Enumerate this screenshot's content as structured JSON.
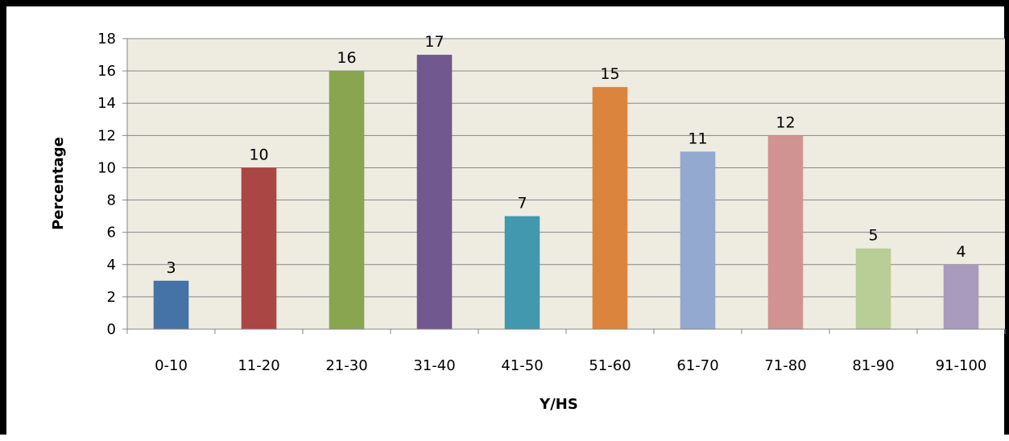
{
  "chart_data": {
    "type": "bar",
    "title": "",
    "xlabel": "Y/HS",
    "ylabel": "Percentage",
    "ylim": [
      0,
      18
    ],
    "yticks": [
      "0",
      "2",
      "4",
      "6",
      "8",
      "10",
      "12",
      "14",
      "16",
      "18"
    ],
    "grid": true,
    "legend": "none",
    "categories": [
      "0-10",
      "11-20",
      "21-30",
      "31-40",
      "41-50",
      "51-60",
      "61-70",
      "71-80",
      "81-90",
      "91-100"
    ],
    "values": [
      3,
      10,
      16,
      17,
      7,
      15,
      11,
      12,
      5,
      4
    ],
    "data_labels": [
      "3",
      "10",
      "16",
      "17",
      "7",
      "15",
      "11",
      "12",
      "5",
      "4"
    ],
    "colors": [
      "#4572a7",
      "#aa4643",
      "#89a54e",
      "#71588f",
      "#4198af",
      "#db843d",
      "#93a9cf",
      "#d19392",
      "#b9cd96",
      "#a99bbd"
    ],
    "plot_background": "#eeece1"
  }
}
